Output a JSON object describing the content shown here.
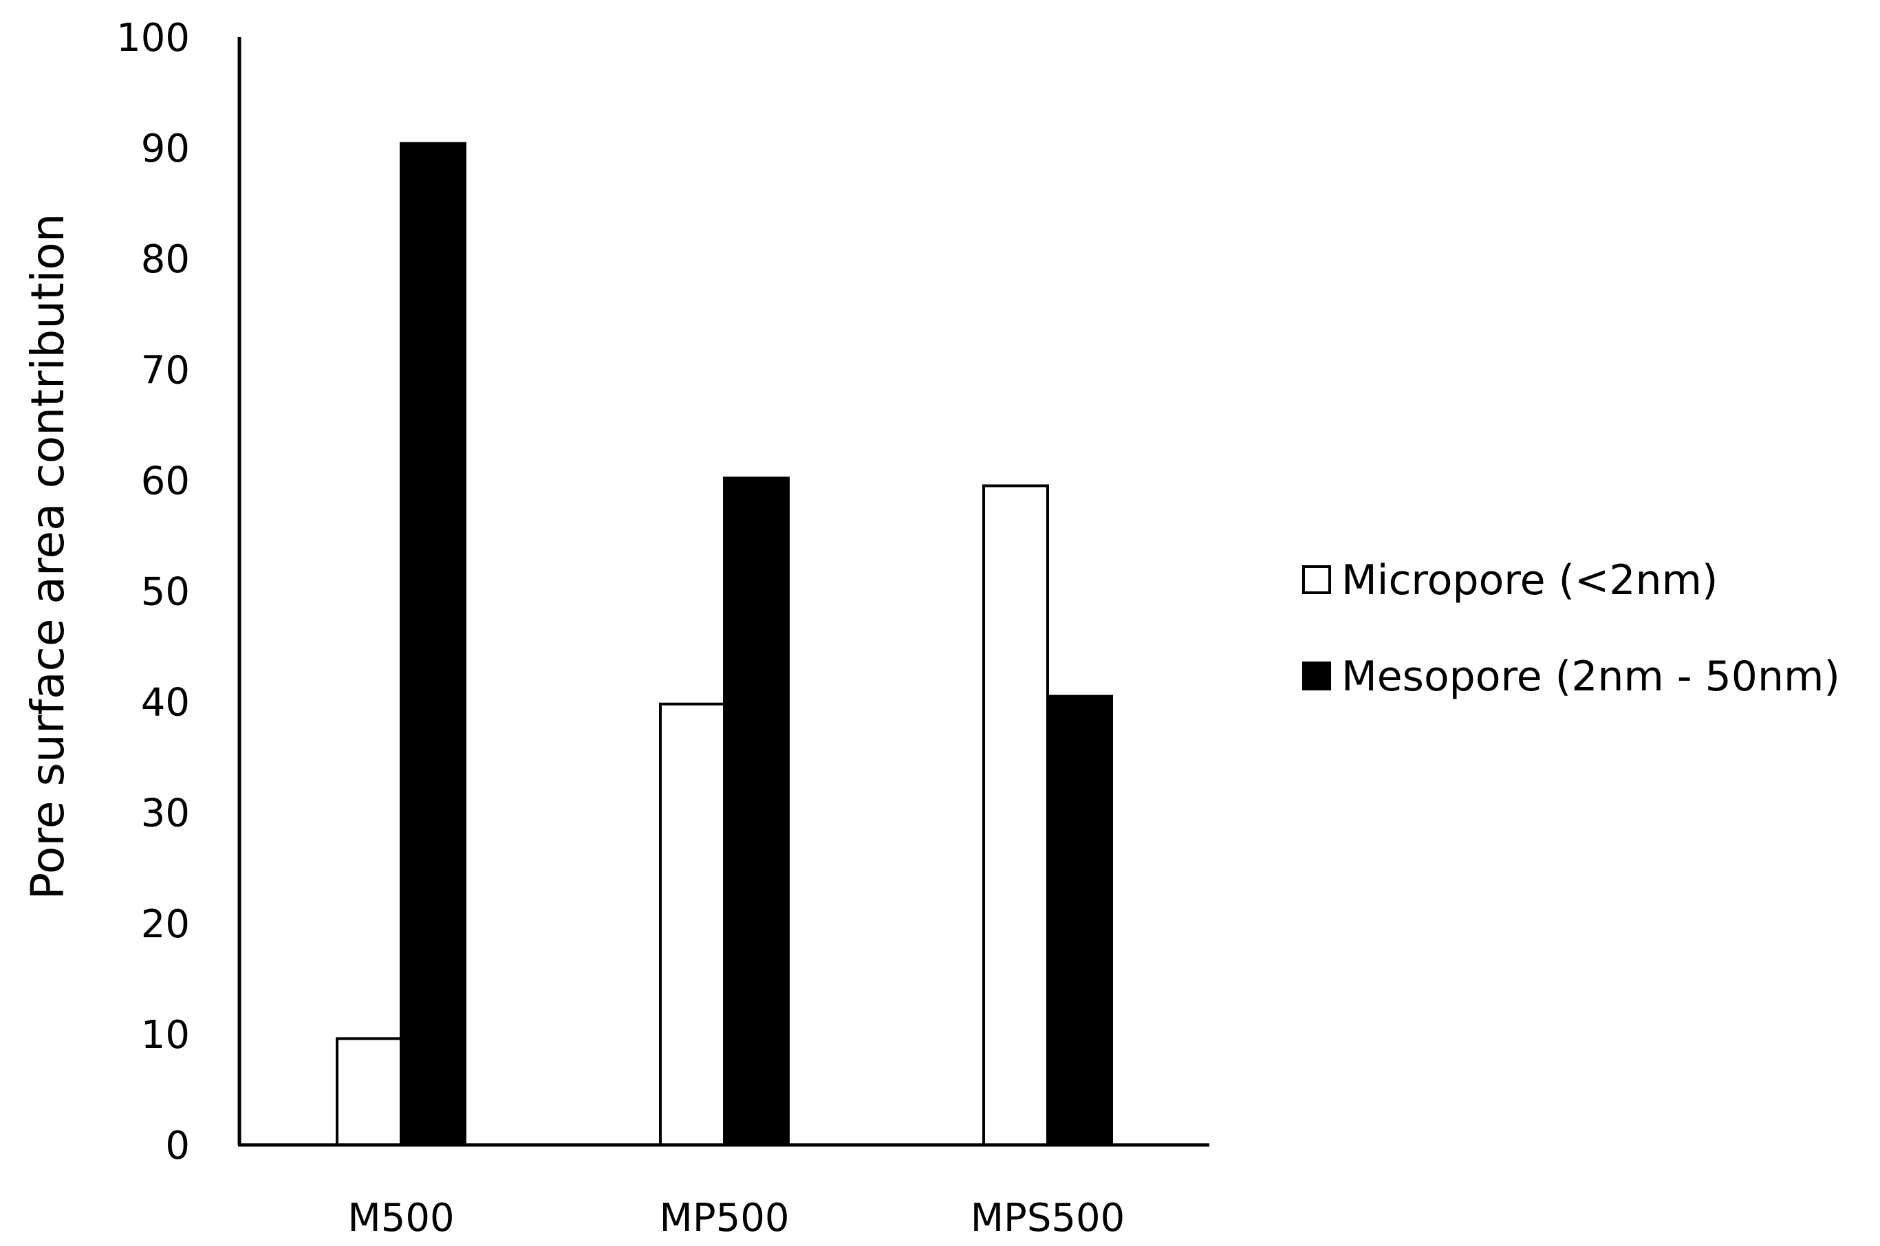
{
  "chart_data": {
    "type": "bar",
    "categories": [
      "M500",
      "MP500",
      "MPS500"
    ],
    "series": [
      {
        "name": "Micropore (<2nm)",
        "values": [
          9.6,
          39.8,
          59.5
        ],
        "fill": "#ffffff",
        "stroke": "#000000"
      },
      {
        "name": "Mesopore (2nm - 50nm)",
        "values": [
          90.4,
          60.2,
          40.5
        ],
        "fill": "#000000",
        "stroke": "#000000"
      }
    ],
    "title": "",
    "xlabel": "",
    "ylabel": "Pore surface area  contribution",
    "ylim": [
      0,
      100
    ],
    "yticks": [
      "0",
      "10",
      "20",
      "30",
      "40",
      "50",
      "60",
      "70",
      "80",
      "90",
      "100"
    ],
    "grid": false,
    "legend_position": "right"
  }
}
